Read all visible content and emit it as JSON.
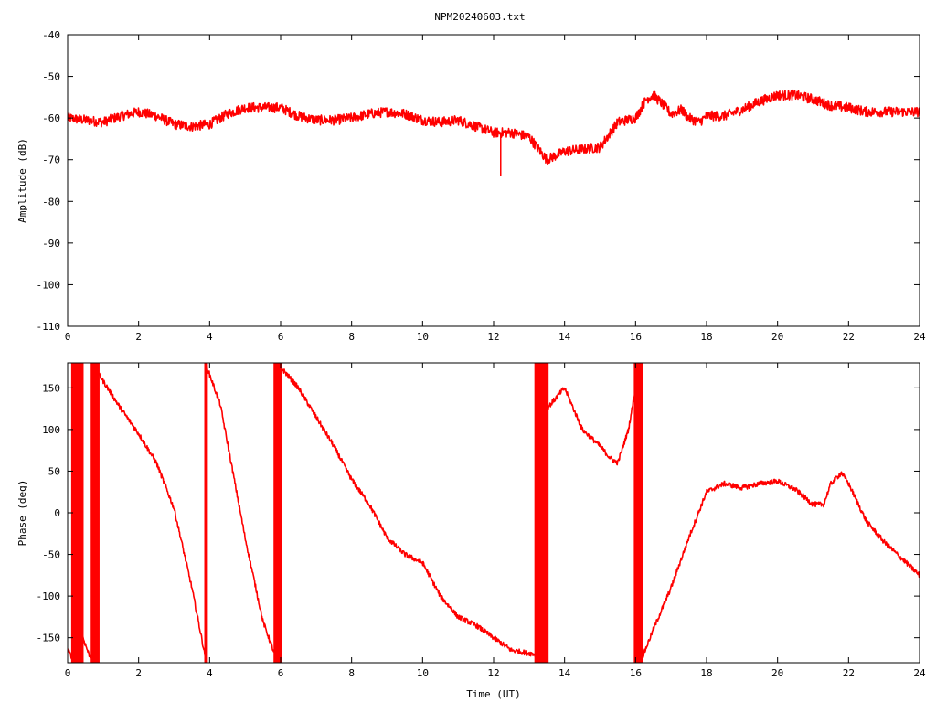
{
  "title": "NPM20240603.txt",
  "colors": {
    "trace": "#ff0000",
    "axes": "#000000",
    "background": "#ffffff"
  },
  "chart_data": [
    {
      "type": "line",
      "name": "amplitude",
      "ylabel": "Amplitude (dB)",
      "xlabel": "",
      "xlim": [
        0,
        24
      ],
      "ylim": [
        -110,
        -40
      ],
      "xticks": [
        0,
        2,
        4,
        6,
        8,
        10,
        12,
        14,
        16,
        18,
        20,
        22,
        24
      ],
      "yticks": [
        -110,
        -100,
        -90,
        -80,
        -70,
        -60,
        -50,
        -40
      ],
      "noise": 1.2,
      "x": [
        0,
        0.5,
        1,
        1.5,
        2,
        2.5,
        3,
        3.5,
        4,
        4.5,
        5,
        5.5,
        6,
        6.5,
        7,
        7.5,
        8,
        8.5,
        9,
        9.5,
        10,
        10.5,
        11,
        11.5,
        12,
        12.5,
        13,
        13.5,
        14,
        14.5,
        15,
        15.5,
        16,
        16.3,
        16.5,
        16.8,
        17,
        17.3,
        17.5,
        17.8,
        18,
        18.5,
        19,
        19.5,
        20,
        20.5,
        21,
        21.5,
        22,
        22.5,
        23,
        23.5,
        24
      ],
      "y": [
        -60,
        -60.5,
        -61,
        -59.5,
        -58.5,
        -59.5,
        -61.5,
        -62,
        -61.5,
        -59,
        -57.5,
        -57.5,
        -57.5,
        -59.5,
        -60.5,
        -60.5,
        -60,
        -59,
        -58.5,
        -59,
        -60.5,
        -61,
        -60.5,
        -62,
        -63.5,
        -63.5,
        -64.5,
        -70,
        -68,
        -67.5,
        -67,
        -61,
        -60,
        -55.5,
        -54.5,
        -57,
        -59,
        -58,
        -60,
        -61,
        -59.5,
        -59.5,
        -58,
        -56,
        -54.5,
        -54.5,
        -55.5,
        -57,
        -57.5,
        -58.5,
        -58.5,
        -58.5,
        -58.5
      ],
      "spike": {
        "x": 12.2,
        "y": [
          -64,
          -74
        ]
      }
    },
    {
      "type": "line",
      "name": "phase",
      "ylabel": "Phase (deg)",
      "xlabel": "Time (UT)",
      "xlim": [
        0,
        24
      ],
      "ylim": [
        -180,
        180
      ],
      "xticks": [
        0,
        2,
        4,
        6,
        8,
        10,
        12,
        14,
        16,
        18,
        20,
        22,
        24
      ],
      "yticks": [
        -150,
        -100,
        -50,
        0,
        50,
        100,
        150
      ],
      "noise": 3,
      "segments": [
        {
          "x": [
            0,
            0.15
          ],
          "y": [
            -165,
            -175
          ]
        },
        {
          "x": [
            0.35,
            0.6,
            0.8
          ],
          "y": [
            -140,
            -170,
            -175
          ]
        },
        {
          "x": [
            0.9,
            1.5,
            2,
            2.5,
            3,
            3.5,
            3.9
          ],
          "y": [
            165,
            125,
            95,
            60,
            5,
            -90,
            -178
          ]
        },
        {
          "x": [
            3.9,
            4.3,
            5,
            5.5,
            5.9
          ],
          "y": [
            178,
            130,
            -30,
            -130,
            -178
          ]
        },
        {
          "x": [
            6,
            6.5,
            7,
            7.5,
            8,
            8.5,
            9,
            9.5,
            10,
            10.5,
            11,
            11.5,
            12,
            12.5,
            13.2
          ],
          "y": [
            175,
            150,
            115,
            80,
            40,
            10,
            -30,
            -50,
            -60,
            -100,
            -125,
            -135,
            -150,
            -165,
            -170
          ]
        },
        {
          "x": [
            13.5,
            14,
            14.5,
            15,
            15.3,
            15.5,
            15.8,
            16,
            16.1
          ],
          "y": [
            125,
            150,
            100,
            80,
            65,
            60,
            100,
            150,
            178
          ]
        },
        {
          "x": [
            16.15,
            16.5,
            17,
            17.5,
            18,
            18.5,
            19,
            19.5,
            20,
            20.5,
            21,
            21.3,
            21.5,
            21.8,
            22,
            22.5,
            23,
            23.5,
            24
          ],
          "y": [
            -178,
            -140,
            -90,
            -30,
            25,
            35,
            30,
            35,
            38,
            28,
            10,
            10,
            35,
            48,
            35,
            -10,
            -35,
            -55,
            -75
          ]
        }
      ],
      "bands": [
        {
          "x": [
            0.1,
            0.45
          ]
        },
        {
          "x": [
            0.65,
            0.9
          ]
        },
        {
          "x": [
            3.85,
            3.95
          ]
        },
        {
          "x": [
            5.8,
            6.05
          ]
        },
        {
          "x": [
            13.15,
            13.55
          ]
        },
        {
          "x": [
            15.95,
            16.2
          ]
        }
      ]
    }
  ]
}
